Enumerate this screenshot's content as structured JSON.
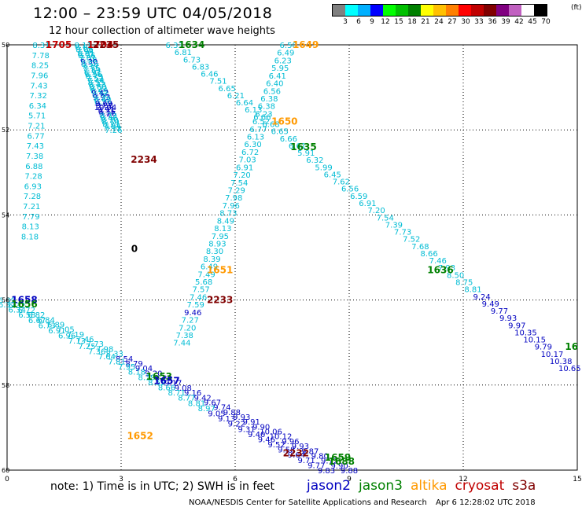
{
  "header": {
    "title": "12:00 – 23:59 UTC 04/05/2018",
    "subtitle": "12 hour collection of altimeter wave heights"
  },
  "legend": {
    "colors": [
      "#808080",
      "#00ffff",
      "#00b0ff",
      "#0000ff",
      "#00ff00",
      "#00c000",
      "#008000",
      "#ffff00",
      "#ffc000",
      "#ff8000",
      "#ff0000",
      "#c00000",
      "#800000",
      "#800080",
      "#c060c0",
      "#ffffff",
      "#000000"
    ],
    "ticks": [
      "3",
      "6",
      "9",
      "12",
      "15",
      "18",
      "21",
      "24",
      "27",
      "30",
      "33",
      "36",
      "39",
      "42",
      "45",
      "70"
    ],
    "unit": "(ft)"
  },
  "colors": {
    "jason2": "#0000c0",
    "jason3": "#008000",
    "altika": "#ff9900",
    "cryosat": "#c00000",
    "s3a": "#800000",
    "light": "#00bcd4",
    "grid": "#000000"
  },
  "axes": {
    "x_ticks": [
      "0",
      "3",
      "6",
      "9",
      "12",
      "15"
    ],
    "y_ticks": [
      "50",
      "52",
      "54",
      "56",
      "58",
      "60"
    ]
  },
  "tracks": [
    {
      "id": "t1704",
      "label": "1704",
      "color": "cryosat",
      "start": [
        2.0,
        50.0
      ],
      "end": [
        2.8,
        52.0
      ],
      "values": [
        "8.11",
        "8.04",
        "8.06",
        "7.94",
        "8.81",
        "8.36",
        "7.81",
        "7.38",
        "9.30",
        "8.56",
        "7.17",
        "7.75",
        "7.39",
        "6.91",
        "6.56",
        "6.79",
        "7.52",
        "7.44",
        "8.55",
        "8.43",
        "8.60",
        "8.22",
        "8.49",
        "9.42",
        "8.96",
        "9.93",
        "8.49",
        "8.96",
        "9.69",
        "9.68",
        "10.04",
        "9.91",
        "9.15",
        "9.26",
        "8.73",
        "8.46",
        "8.70",
        "8.70",
        "8.21",
        "7.84",
        "7.73",
        "7.26"
      ]
    },
    {
      "id": "t1705",
      "label": "1705",
      "color": "cryosat",
      "start": [
        0.9,
        50.0
      ],
      "end": [
        0.6,
        54.5
      ],
      "values": [
        "8.31",
        "7.78",
        "8.25",
        "7.96",
        "7.43",
        "7.32",
        "6.34",
        "5.71",
        "7.21",
        "6.77",
        "7.43",
        "7.38",
        "6.88",
        "7.28",
        "6.93",
        "7.28",
        "7.21",
        "7.79",
        "8.13",
        "8.18"
      ]
    },
    {
      "id": "t1634",
      "label": "1634",
      "color": "jason3",
      "start": [
        4.4,
        50.0
      ],
      "end": [
        14.8,
        57.6
      ],
      "values": [
        "6.33",
        "6.81",
        "6.73",
        "6.83",
        "6.46",
        "7.51",
        "6.65",
        "6.21",
        "6.64",
        "6.13",
        "6.66",
        "6.68",
        "6.65",
        "6.66",
        "6.61",
        "5.91",
        "6.32",
        "5.99",
        "6.45",
        "7.62",
        "6.56",
        "6.59",
        "6.91",
        "7.20",
        "7.54",
        "7.39",
        "7.73",
        "7.52",
        "7.68",
        "8.66",
        "7.46",
        "7.93",
        "8.50",
        "8.75",
        "8.81",
        "9.24",
        "9.49",
        "9.77",
        "9.93",
        "9.97",
        "10.35",
        "10.15",
        "9.79",
        "10.17",
        "10.38",
        "10.65"
      ]
    },
    {
      "id": "t1649",
      "label": "1649",
      "color": "altika",
      "start": [
        7.4,
        50.0
      ],
      "end": [
        4.6,
        57.0
      ],
      "values": [
        "6.50",
        "6.49",
        "6.23",
        "5.95",
        "6.41",
        "6.40",
        "6.56",
        "6.38",
        "6.38",
        "6.23",
        "6.52",
        "6.77",
        "6.13",
        "6.30",
        "6.72",
        "7.03",
        "6.91",
        "7.20",
        "7.54",
        "7.29",
        "7.98",
        "7.96",
        "8.73",
        "8.49",
        "8.13",
        "7.95",
        "8.93",
        "8.30",
        "8.39",
        "6.49",
        "7.49",
        "5.68",
        "7.57",
        "7.46",
        "7.59",
        "9.46",
        "7.27",
        "7.20",
        "7.38",
        "7.44"
      ]
    },
    {
      "id": "t1658",
      "label": "1658",
      "color": "jason2",
      "start": [
        0.0,
        56.0
      ],
      "end": [
        9.0,
        60.0
      ],
      "values": [
        "6.39",
        "6.32",
        "6.72",
        "6.82",
        "6.84",
        "6.89",
        "7.05",
        "7.19",
        "7.46",
        "7.73",
        "7.98",
        "8.33",
        "8.54",
        "8.79",
        "9.04",
        "9.20",
        "9.29",
        "9.17",
        "9.08",
        "9.16",
        "9.42",
        "9.67",
        "9.74",
        "9.88",
        "9.93",
        "9.91",
        "9.90",
        "10.06",
        "10.12",
        "9.96",
        "9.93",
        "9.87",
        "9.80",
        "9.72",
        "9.90",
        "9.88"
      ]
    },
    {
      "id": "t1656",
      "label": "1656",
      "color": "jason3",
      "start": [
        0.0,
        56.1
      ],
      "end": [
        8.4,
        60.0
      ],
      "values": [
        "6.37",
        "6.34",
        "6.58",
        "6.67",
        "6.73",
        "6.91",
        "6.96",
        "7.13",
        "7.25",
        "7.36",
        "7.64",
        "7.81",
        "7.95",
        "8.18",
        "8.39",
        "8.52",
        "8.66",
        "8.71",
        "8.77",
        "8.81",
        "8.97",
        "9.05",
        "9.13",
        "9.22",
        "9.31",
        "9.40",
        "9.46",
        "9.52",
        "9.58",
        "9.64",
        "9.71",
        "9.77",
        "9.83"
      ]
    },
    {
      "id": "t2235",
      "label": "2235",
      "color": "s3a",
      "start": [
        2.6,
        50.0
      ],
      "end": [
        2.6,
        50.0
      ],
      "values": []
    },
    {
      "id": "t2234",
      "label": "2234",
      "color": "s3a",
      "start": [
        3.6,
        52.7
      ],
      "end": [
        3.6,
        52.7
      ],
      "values": []
    },
    {
      "id": "t2233",
      "label": "2233",
      "color": "s3a",
      "start": [
        5.6,
        56.0
      ],
      "end": [
        5.6,
        56.0
      ],
      "values": []
    },
    {
      "id": "t2232",
      "label": "2232",
      "color": "s3a",
      "start": [
        7.6,
        59.6
      ],
      "end": [
        7.6,
        59.6
      ],
      "values": []
    },
    {
      "id": "t1650",
      "label": "1650",
      "color": "altika",
      "start": [
        7.3,
        51.8
      ],
      "end": [
        7.3,
        51.8
      ],
      "values": []
    },
    {
      "id": "t1635",
      "label": "1635",
      "color": "jason3",
      "start": [
        7.8,
        52.4
      ],
      "end": [
        7.8,
        52.4
      ],
      "values": []
    },
    {
      "id": "t1636",
      "label": "1636",
      "color": "jason3",
      "start": [
        11.4,
        55.3
      ],
      "end": [
        11.4,
        55.3
      ],
      "values": []
    },
    {
      "id": "t1651",
      "label": "1651",
      "color": "altika",
      "start": [
        5.6,
        55.3
      ],
      "end": [
        5.6,
        55.3
      ],
      "values": []
    },
    {
      "id": "t1652",
      "label": "1652",
      "color": "altika",
      "start": [
        3.5,
        59.2
      ],
      "end": [
        3.5,
        59.2
      ],
      "values": []
    },
    {
      "id": "t1653",
      "label": "1653",
      "color": "jason3",
      "start": [
        4.0,
        57.8
      ],
      "end": [
        4.0,
        57.8
      ],
      "values": []
    },
    {
      "id": "t1657",
      "label": "1657",
      "color": "jason2",
      "start": [
        4.2,
        57.9
      ],
      "end": [
        4.2,
        57.9
      ],
      "values": []
    },
    {
      "id": "t1659",
      "label": "1659",
      "color": "jason3",
      "start": [
        8.7,
        59.7
      ],
      "end": [
        8.7,
        59.7
      ],
      "values": []
    },
    {
      "id": "t1688",
      "label": "1688",
      "color": "jason3",
      "start": [
        8.8,
        59.8
      ],
      "end": [
        8.8,
        59.8
      ],
      "values": []
    },
    {
      "id": "t16e",
      "label": "16",
      "color": "jason3",
      "start": [
        14.85,
        57.1
      ],
      "end": [
        14.85,
        57.1
      ],
      "values": []
    },
    {
      "id": "tzero",
      "label": "0",
      "color": "grid",
      "start": [
        3.35,
        54.8
      ],
      "end": [
        3.35,
        54.8
      ],
      "values": []
    }
  ],
  "footer": {
    "note": "note:  1) Time is in UTC;  2) SWH is in feet",
    "satellites": [
      {
        "name": "jason2",
        "color": "jason2"
      },
      {
        "name": "jason3",
        "color": "jason3"
      },
      {
        "name": "altika",
        "color": "altika"
      },
      {
        "name": "cryosat",
        "color": "cryosat"
      },
      {
        "name": "s3a",
        "color": "s3a"
      }
    ],
    "credit_org": "NOAA/NESDIS Center for Satellite Applications and Research",
    "credit_time": "Apr  6 12:28:02 UTC 2018"
  }
}
